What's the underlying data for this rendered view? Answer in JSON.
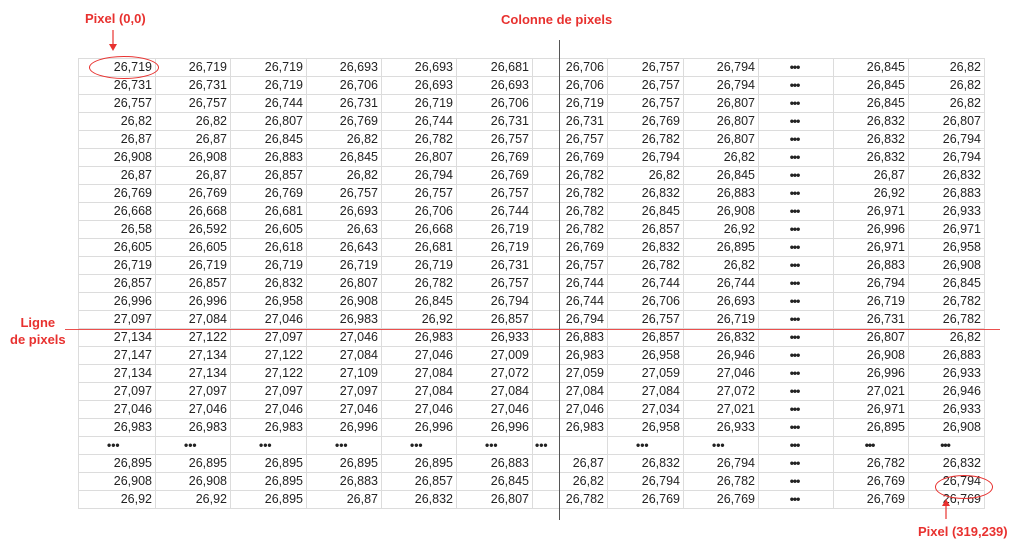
{
  "annotations": {
    "origin_label": "Pixel (0,0)",
    "column_label": "Colonne de pixels",
    "row_label_line1": "Ligne",
    "row_label_line2": "de pixels",
    "end_label": "Pixel (319,239)",
    "accent_color": "#e8312f"
  },
  "table": {
    "ellipsis": "•••",
    "rows": [
      [
        "26,719",
        "26,719",
        "26,719",
        "26,693",
        "26,693",
        "26,681",
        "26,706",
        "26,757",
        "26,794",
        "•••",
        "26,845",
        "26,82"
      ],
      [
        "26,731",
        "26,731",
        "26,719",
        "26,706",
        "26,693",
        "26,693",
        "26,706",
        "26,757",
        "26,794",
        "•••",
        "26,845",
        "26,82"
      ],
      [
        "26,757",
        "26,757",
        "26,744",
        "26,731",
        "26,719",
        "26,706",
        "26,719",
        "26,757",
        "26,807",
        "•••",
        "26,845",
        "26,82"
      ],
      [
        "26,82",
        "26,82",
        "26,807",
        "26,769",
        "26,744",
        "26,731",
        "26,731",
        "26,769",
        "26,807",
        "•••",
        "26,832",
        "26,807"
      ],
      [
        "26,87",
        "26,87",
        "26,845",
        "26,82",
        "26,782",
        "26,757",
        "26,757",
        "26,782",
        "26,807",
        "•••",
        "26,832",
        "26,794"
      ],
      [
        "26,908",
        "26,908",
        "26,883",
        "26,845",
        "26,807",
        "26,769",
        "26,769",
        "26,794",
        "26,82",
        "•••",
        "26,832",
        "26,794"
      ],
      [
        "26,87",
        "26,87",
        "26,857",
        "26,82",
        "26,794",
        "26,769",
        "26,782",
        "26,82",
        "26,845",
        "•••",
        "26,87",
        "26,832"
      ],
      [
        "26,769",
        "26,769",
        "26,769",
        "26,757",
        "26,757",
        "26,757",
        "26,782",
        "26,832",
        "26,883",
        "•••",
        "26,92",
        "26,883"
      ],
      [
        "26,668",
        "26,668",
        "26,681",
        "26,693",
        "26,706",
        "26,744",
        "26,782",
        "26,845",
        "26,908",
        "•••",
        "26,971",
        "26,933"
      ],
      [
        "26,58",
        "26,592",
        "26,605",
        "26,63",
        "26,668",
        "26,719",
        "26,782",
        "26,857",
        "26,92",
        "•••",
        "26,996",
        "26,971"
      ],
      [
        "26,605",
        "26,605",
        "26,618",
        "26,643",
        "26,681",
        "26,719",
        "26,769",
        "26,832",
        "26,895",
        "•••",
        "26,971",
        "26,958"
      ],
      [
        "26,719",
        "26,719",
        "26,719",
        "26,719",
        "26,719",
        "26,731",
        "26,757",
        "26,782",
        "26,82",
        "•••",
        "26,883",
        "26,908"
      ],
      [
        "26,857",
        "26,857",
        "26,832",
        "26,807",
        "26,782",
        "26,757",
        "26,744",
        "26,744",
        "26,744",
        "•••",
        "26,794",
        "26,845"
      ],
      [
        "26,996",
        "26,996",
        "26,958",
        "26,908",
        "26,845",
        "26,794",
        "26,744",
        "26,706",
        "26,693",
        "•••",
        "26,719",
        "26,782"
      ],
      [
        "27,097",
        "27,084",
        "27,046",
        "26,983",
        "26,92",
        "26,857",
        "26,794",
        "26,757",
        "26,719",
        "•••",
        "26,731",
        "26,782"
      ],
      [
        "27,134",
        "27,122",
        "27,097",
        "27,046",
        "26,983",
        "26,933",
        "26,883",
        "26,857",
        "26,832",
        "•••",
        "26,807",
        "26,82"
      ],
      [
        "27,147",
        "27,134",
        "27,122",
        "27,084",
        "27,046",
        "27,009",
        "26,983",
        "26,958",
        "26,946",
        "•••",
        "26,908",
        "26,883"
      ],
      [
        "27,134",
        "27,134",
        "27,122",
        "27,109",
        "27,084",
        "27,072",
        "27,059",
        "27,059",
        "27,046",
        "•••",
        "26,996",
        "26,933"
      ],
      [
        "27,097",
        "27,097",
        "27,097",
        "27,097",
        "27,084",
        "27,084",
        "27,084",
        "27,084",
        "27,072",
        "•••",
        "27,021",
        "26,946"
      ],
      [
        "27,046",
        "27,046",
        "27,046",
        "27,046",
        "27,046",
        "27,046",
        "27,046",
        "27,034",
        "27,021",
        "•••",
        "26,971",
        "26,933"
      ],
      [
        "26,983",
        "26,983",
        "26,983",
        "26,996",
        "26,996",
        "26,996",
        "26,983",
        "26,958",
        "26,933",
        "•••",
        "26,895",
        "26,908"
      ],
      [
        "•••",
        "•••",
        "•••",
        "•••",
        "•••",
        "•••",
        "•••",
        "•••",
        "•••",
        "•••",
        "•••",
        "•••"
      ],
      [
        "26,895",
        "26,895",
        "26,895",
        "26,895",
        "26,895",
        "26,883",
        "26,87",
        "26,832",
        "26,794",
        "•••",
        "26,782",
        "26,832"
      ],
      [
        "26,908",
        "26,908",
        "26,895",
        "26,883",
        "26,857",
        "26,845",
        "26,82",
        "26,794",
        "26,782",
        "•••",
        "26,769",
        "26,794"
      ],
      [
        "26,92",
        "26,92",
        "26,895",
        "26,87",
        "26,832",
        "26,807",
        "26,782",
        "26,769",
        "26,769",
        "•••",
        "26,769",
        "26,769"
      ]
    ]
  }
}
